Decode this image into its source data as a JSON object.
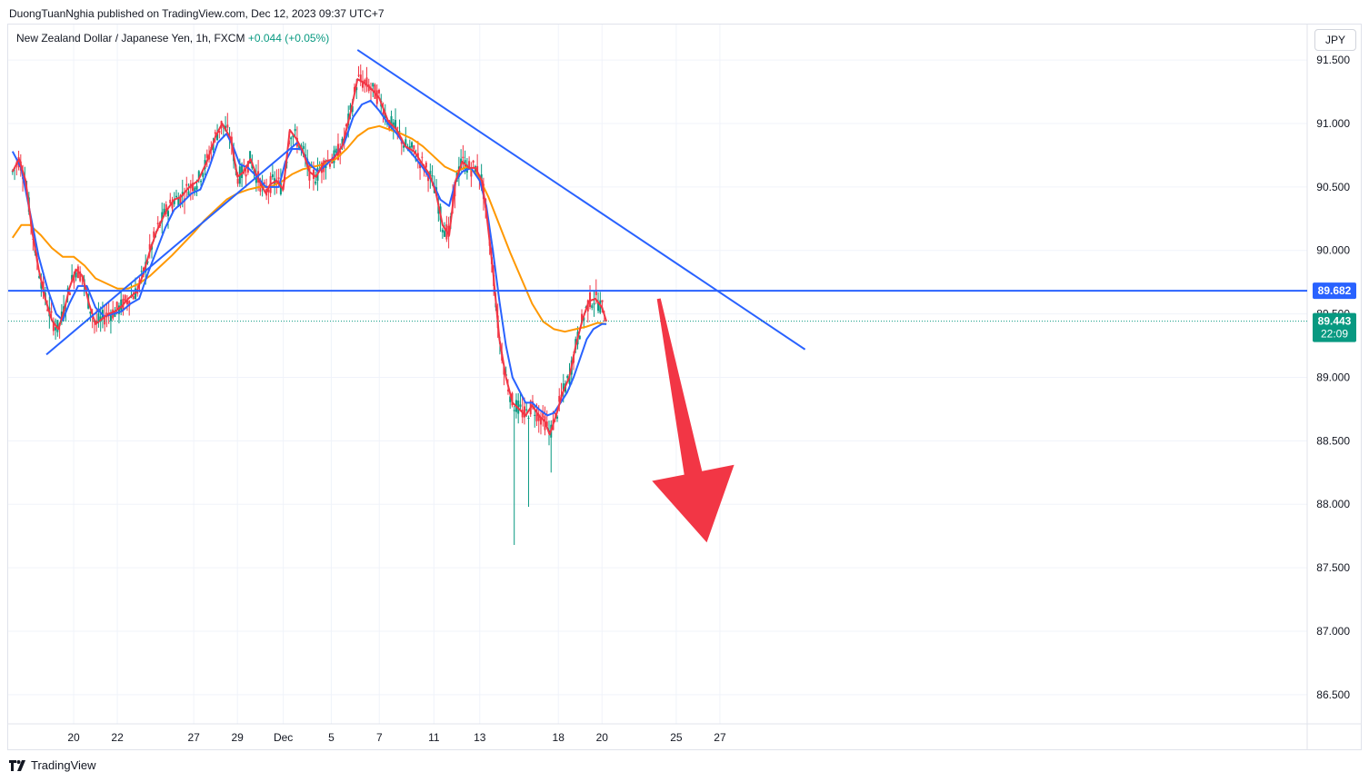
{
  "header": {
    "published": "DuongTuanNghia published on TradingView.com, Dec 12, 2023 09:37 UTC+7"
  },
  "legend": {
    "symbol": "New Zealand Dollar / Japanese Yen, 1h, FXCM",
    "change": "+0.044 (+0.05%)"
  },
  "currency": "JPY",
  "footer": {
    "brand": "TradingView"
  },
  "colors": {
    "price_up": "#089981",
    "price_down": "#f23645",
    "ema_fast": "#f23645",
    "ema_mid": "#2962ff",
    "ema_slow": "#ff9800",
    "trendline": "#2962ff",
    "arrow": "#f23645",
    "grid": "#f0f3fa"
  },
  "chart_data": {
    "type": "line",
    "x_axis_labels": [
      "20",
      "22",
      "27",
      "29",
      "Dec",
      "5",
      "7",
      "11",
      "13",
      "18",
      "20",
      "25",
      "27"
    ],
    "y_axis_labels": [
      "91.500",
      "91.000",
      "90.500",
      "90.000",
      "89.500",
      "89.000",
      "88.500",
      "88.000",
      "87.500",
      "87.000",
      "86.500"
    ],
    "ylim": [
      86.27,
      91.78
    ],
    "price_marks": [
      {
        "label": "89.682",
        "value": 89.682,
        "color": "#2962ff"
      },
      {
        "label": "89.443",
        "sub": "22:09",
        "value": 89.443,
        "color": "#089981"
      }
    ],
    "series": [
      {
        "color": "#f23645",
        "values": [
          [
            17.2,
            90.62
          ],
          [
            17.5,
            90.72
          ],
          [
            17.8,
            90.55
          ],
          [
            18.1,
            90.15
          ],
          [
            18.4,
            89.85
          ],
          [
            18.7,
            89.62
          ],
          [
            19.0,
            89.45
          ],
          [
            19.3,
            89.38
          ],
          [
            19.6,
            89.55
          ],
          [
            19.8,
            89.7
          ],
          [
            20.1,
            89.85
          ],
          [
            20.4,
            89.8
          ],
          [
            20.7,
            89.58
          ],
          [
            21.0,
            89.42
          ],
          [
            21.3,
            89.46
          ],
          [
            21.6,
            89.5
          ],
          [
            21.9,
            89.52
          ],
          [
            22.2,
            89.56
          ],
          [
            22.5,
            89.62
          ],
          [
            22.9,
            89.68
          ],
          [
            23.2,
            89.82
          ],
          [
            23.5,
            90.0
          ],
          [
            23.8,
            90.15
          ],
          [
            24.2,
            90.3
          ],
          [
            24.6,
            90.4
          ],
          [
            24.9,
            90.42
          ],
          [
            25.3,
            90.5
          ],
          [
            25.7,
            90.55
          ],
          [
            26.1,
            90.7
          ],
          [
            26.5,
            90.9
          ],
          [
            26.8,
            91.0
          ],
          [
            27.2,
            90.88
          ],
          [
            27.5,
            90.58
          ],
          [
            27.8,
            90.62
          ],
          [
            28.1,
            90.72
          ],
          [
            28.4,
            90.58
          ],
          [
            28.8,
            90.45
          ],
          [
            29.0,
            90.52
          ],
          [
            29.3,
            90.55
          ],
          [
            29.6,
            90.48
          ],
          [
            29.9,
            90.95
          ],
          [
            30.2,
            90.88
          ],
          [
            30.5,
            90.78
          ],
          [
            30.8,
            90.62
          ],
          [
            31.1,
            90.58
          ],
          [
            31.5,
            90.7
          ],
          [
            31.9,
            90.72
          ],
          [
            32.3,
            90.82
          ],
          [
            32.7,
            91.1
          ],
          [
            33.0,
            91.35
          ],
          [
            33.3,
            91.32
          ],
          [
            33.6,
            91.28
          ],
          [
            34.0,
            91.2
          ],
          [
            34.4,
            91.02
          ],
          [
            34.8,
            90.95
          ],
          [
            35.2,
            90.82
          ],
          [
            35.6,
            90.78
          ],
          [
            35.9,
            90.7
          ],
          [
            36.3,
            90.6
          ],
          [
            36.6,
            90.45
          ],
          [
            36.9,
            90.2
          ],
          [
            37.2,
            90.12
          ],
          [
            37.5,
            90.55
          ],
          [
            37.8,
            90.7
          ],
          [
            38.1,
            90.65
          ],
          [
            38.4,
            90.65
          ],
          [
            38.7,
            90.55
          ],
          [
            38.9,
            90.3
          ],
          [
            39.2,
            89.85
          ],
          [
            39.5,
            89.3
          ],
          [
            39.8,
            89.0
          ],
          [
            40.1,
            88.8
          ],
          [
            40.4,
            88.75
          ],
          [
            40.7,
            88.7
          ],
          [
            41.0,
            88.78
          ],
          [
            41.3,
            88.7
          ],
          [
            41.6,
            88.65
          ],
          [
            41.8,
            88.55
          ],
          [
            42.1,
            88.7
          ],
          [
            42.4,
            88.88
          ],
          [
            42.7,
            89.0
          ],
          [
            43.0,
            89.25
          ],
          [
            43.3,
            89.45
          ],
          [
            43.6,
            89.6
          ],
          [
            43.9,
            89.62
          ],
          [
            44.2,
            89.55
          ],
          [
            44.4,
            89.44
          ]
        ]
      },
      {
        "color": "#2962ff",
        "values": [
          [
            17.2,
            90.78
          ],
          [
            17.6,
            90.65
          ],
          [
            18.0,
            90.3
          ],
          [
            18.4,
            89.95
          ],
          [
            18.8,
            89.7
          ],
          [
            19.2,
            89.5
          ],
          [
            19.5,
            89.45
          ],
          [
            19.8,
            89.58
          ],
          [
            20.2,
            89.72
          ],
          [
            20.6,
            89.72
          ],
          [
            21.0,
            89.55
          ],
          [
            21.4,
            89.48
          ],
          [
            21.8,
            89.5
          ],
          [
            22.2,
            89.52
          ],
          [
            22.6,
            89.58
          ],
          [
            23.0,
            89.62
          ],
          [
            23.4,
            89.82
          ],
          [
            23.8,
            90.0
          ],
          [
            24.2,
            90.18
          ],
          [
            24.6,
            90.32
          ],
          [
            25.0,
            90.38
          ],
          [
            25.4,
            90.45
          ],
          [
            25.8,
            90.48
          ],
          [
            26.2,
            90.65
          ],
          [
            26.6,
            90.85
          ],
          [
            27.0,
            90.92
          ],
          [
            27.3,
            90.82
          ],
          [
            27.6,
            90.68
          ],
          [
            28.0,
            90.65
          ],
          [
            28.4,
            90.58
          ],
          [
            28.8,
            90.5
          ],
          [
            29.1,
            90.5
          ],
          [
            29.4,
            90.5
          ],
          [
            29.7,
            90.7
          ],
          [
            30.0,
            90.8
          ],
          [
            30.4,
            90.8
          ],
          [
            30.8,
            90.68
          ],
          [
            31.2,
            90.62
          ],
          [
            31.6,
            90.68
          ],
          [
            32.0,
            90.75
          ],
          [
            32.4,
            90.85
          ],
          [
            32.8,
            91.05
          ],
          [
            33.2,
            91.15
          ],
          [
            33.6,
            91.18
          ],
          [
            34.0,
            91.1
          ],
          [
            34.4,
            91.0
          ],
          [
            34.8,
            90.92
          ],
          [
            35.2,
            90.82
          ],
          [
            35.6,
            90.74
          ],
          [
            36.0,
            90.65
          ],
          [
            36.4,
            90.55
          ],
          [
            36.8,
            90.4
          ],
          [
            37.2,
            90.35
          ],
          [
            37.5,
            90.55
          ],
          [
            37.8,
            90.62
          ],
          [
            38.2,
            90.65
          ],
          [
            38.6,
            90.55
          ],
          [
            38.9,
            90.35
          ],
          [
            39.2,
            90.0
          ],
          [
            39.5,
            89.6
          ],
          [
            39.8,
            89.25
          ],
          [
            40.1,
            89.0
          ],
          [
            40.4,
            88.9
          ],
          [
            40.7,
            88.8
          ],
          [
            41.0,
            88.8
          ],
          [
            41.3,
            88.75
          ],
          [
            41.7,
            88.7
          ],
          [
            42.0,
            88.72
          ],
          [
            42.3,
            88.8
          ],
          [
            42.6,
            88.88
          ],
          [
            42.9,
            89.0
          ],
          [
            43.2,
            89.15
          ],
          [
            43.5,
            89.3
          ],
          [
            43.8,
            89.38
          ],
          [
            44.2,
            89.42
          ],
          [
            44.4,
            89.42
          ]
        ]
      },
      {
        "color": "#ff9800",
        "values": [
          [
            17.2,
            90.1
          ],
          [
            17.6,
            90.2
          ],
          [
            18.0,
            90.2
          ],
          [
            18.5,
            90.12
          ],
          [
            19.0,
            90.02
          ],
          [
            19.5,
            89.95
          ],
          [
            20.0,
            89.95
          ],
          [
            20.5,
            89.88
          ],
          [
            21.0,
            89.78
          ],
          [
            21.5,
            89.74
          ],
          [
            22.0,
            89.7
          ],
          [
            22.5,
            89.7
          ],
          [
            23.0,
            89.74
          ],
          [
            23.5,
            89.8
          ],
          [
            24.0,
            89.88
          ],
          [
            24.5,
            89.96
          ],
          [
            25.0,
            90.05
          ],
          [
            25.5,
            90.14
          ],
          [
            26.0,
            90.24
          ],
          [
            26.5,
            90.32
          ],
          [
            27.0,
            90.4
          ],
          [
            27.5,
            90.45
          ],
          [
            28.0,
            90.48
          ],
          [
            28.5,
            90.5
          ],
          [
            29.0,
            90.5
          ],
          [
            29.5,
            90.54
          ],
          [
            30.0,
            90.6
          ],
          [
            30.5,
            90.64
          ],
          [
            31.0,
            90.66
          ],
          [
            31.5,
            90.68
          ],
          [
            32.0,
            90.72
          ],
          [
            32.5,
            90.8
          ],
          [
            33.0,
            90.9
          ],
          [
            33.5,
            90.96
          ],
          [
            34.0,
            90.98
          ],
          [
            34.5,
            90.95
          ],
          [
            35.0,
            90.92
          ],
          [
            35.5,
            90.88
          ],
          [
            36.0,
            90.82
          ],
          [
            36.5,
            90.74
          ],
          [
            37.0,
            90.66
          ],
          [
            37.5,
            90.62
          ],
          [
            38.0,
            90.66
          ],
          [
            38.5,
            90.6
          ],
          [
            39.0,
            90.42
          ],
          [
            39.5,
            90.2
          ],
          [
            40.0,
            89.98
          ],
          [
            40.5,
            89.78
          ],
          [
            41.0,
            89.58
          ],
          [
            41.5,
            89.44
          ],
          [
            42.0,
            89.38
          ],
          [
            42.5,
            89.36
          ],
          [
            43.0,
            89.38
          ],
          [
            43.5,
            89.4
          ],
          [
            44.0,
            89.43
          ],
          [
            44.4,
            89.42
          ]
        ]
      }
    ],
    "trendlines": [
      {
        "color": "#2962ff",
        "from": [
          18.75,
          89.18
        ],
        "to": [
          30.25,
          90.85
        ]
      },
      {
        "color": "#2962ff",
        "from": [
          33.0,
          91.58
        ],
        "to": [
          53.5,
          89.22
        ]
      },
      {
        "color": "#2962ff",
        "from": [
          17.0,
          89.682
        ],
        "to": [
          76.5,
          89.682
        ]
      }
    ],
    "arrow": {
      "color": "#f23645",
      "from": [
        46.8,
        89.62
      ],
      "to": [
        49.0,
        87.7
      ]
    },
    "grid": true
  }
}
